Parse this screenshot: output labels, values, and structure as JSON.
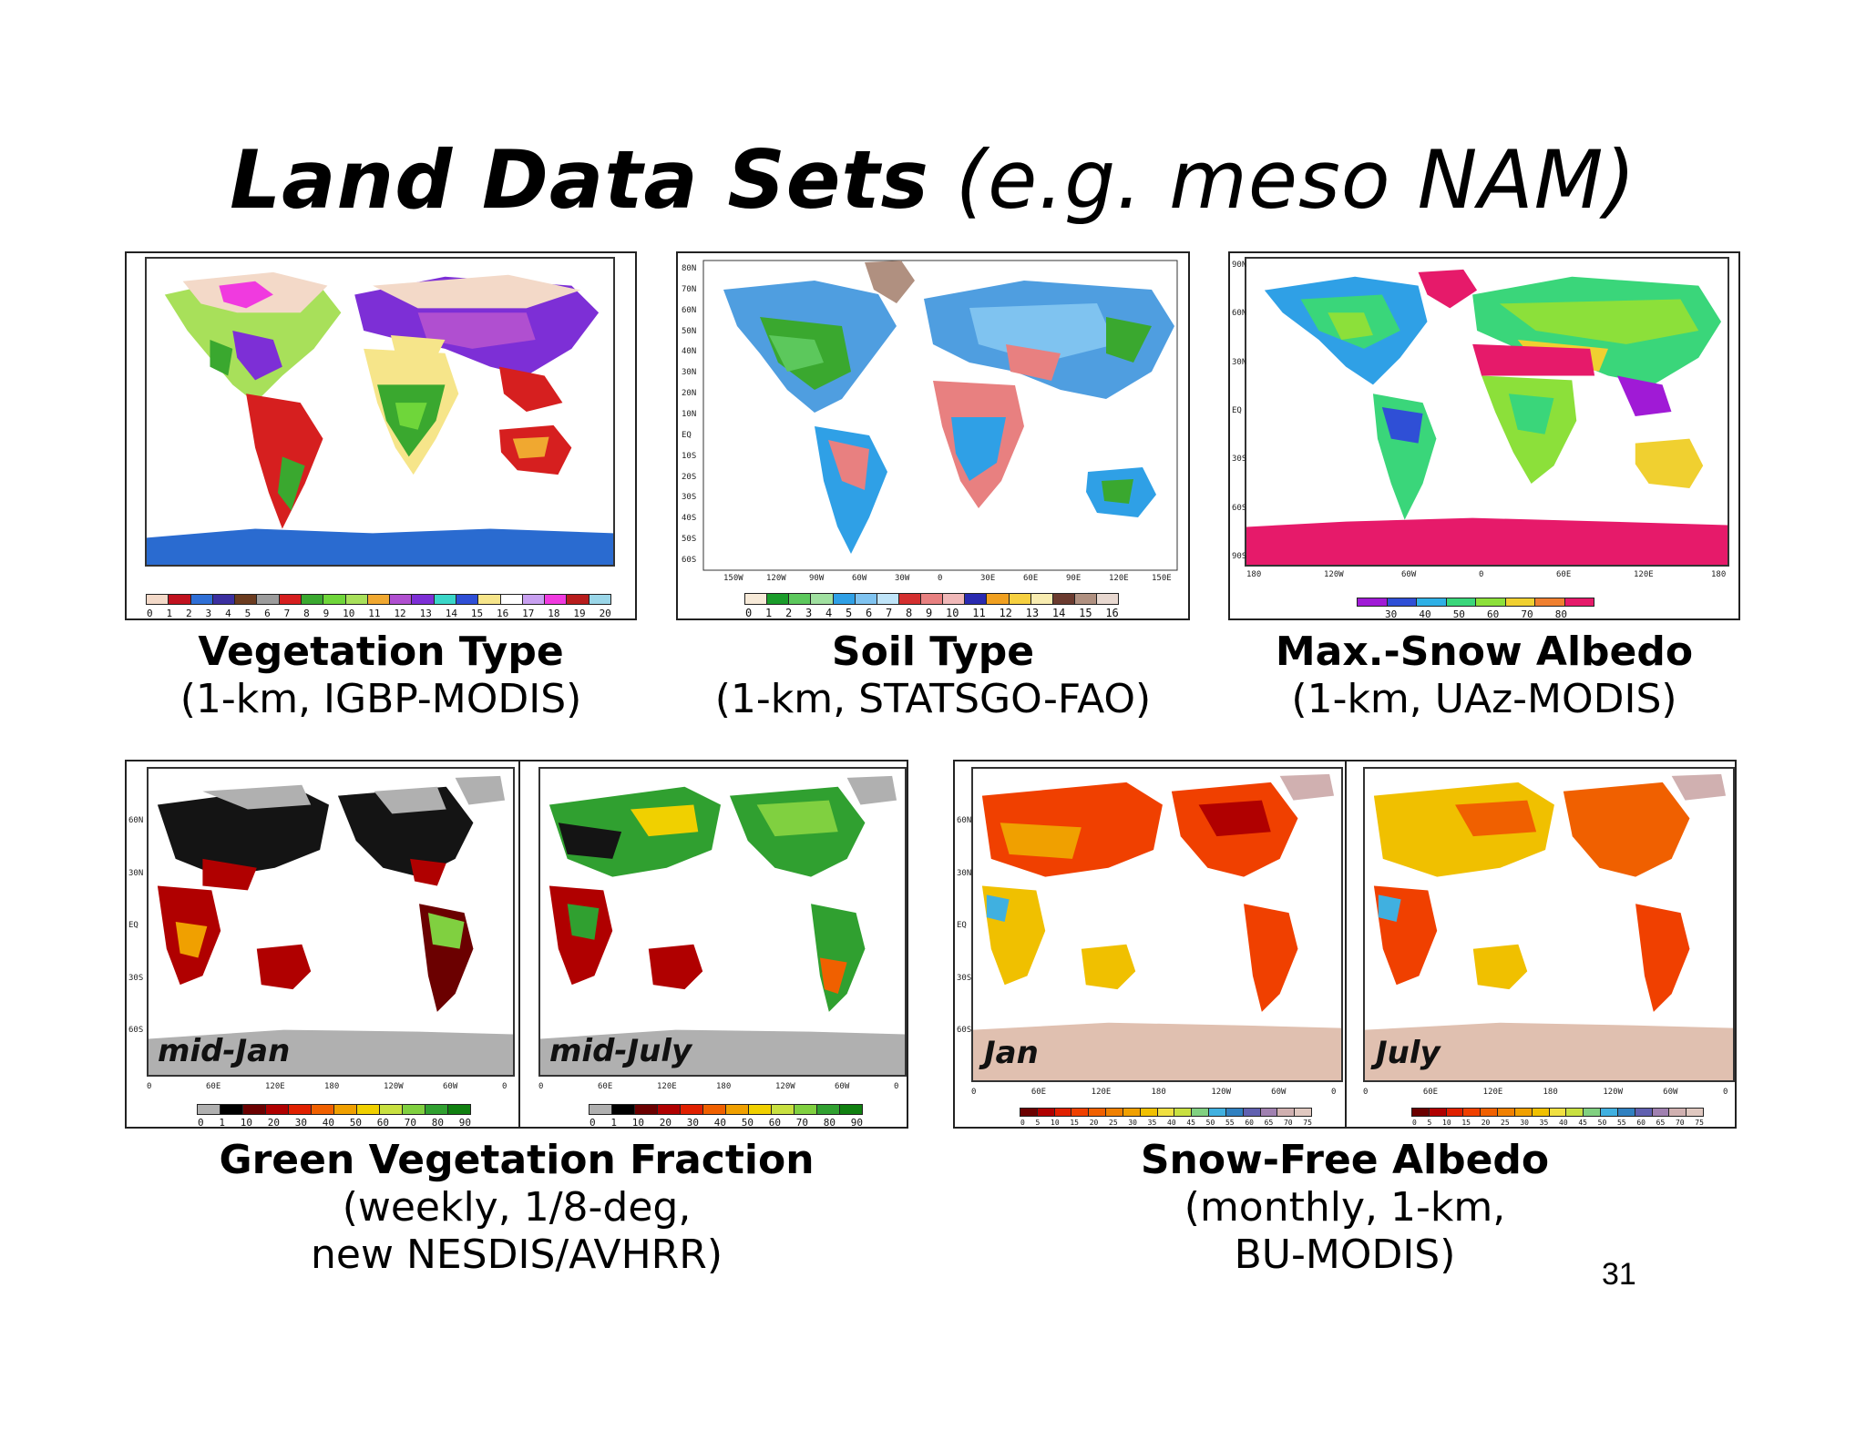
{
  "slide": {
    "title_bold": "Land Data Sets",
    "title_rest": "(e.g. meso NAM)",
    "page_number": "31"
  },
  "panels": {
    "vegetation": {
      "title": "Vegetation Type",
      "subtitle": "(1-km, IGBP-MODIS)",
      "colorbar_ticks": [
        "0",
        "1",
        "2",
        "3",
        "4",
        "5",
        "6",
        "7",
        "8",
        "9",
        "10",
        "11",
        "12",
        "13",
        "14",
        "15",
        "16",
        "17",
        "18",
        "19",
        "20"
      ],
      "colorbar_colors": [
        "#f3d9c8",
        "#c1121f",
        "#2f6fd6",
        "#3b2fa0",
        "#6b3b1f",
        "#9c9c9c",
        "#d61f1f",
        "#3aa82f",
        "#6fd63a",
        "#a8e05a",
        "#f0a830",
        "#b04fd0",
        "#7d2fd6",
        "#3ad6c8",
        "#2f4fd6",
        "#f6e58a",
        "#ffffff",
        "#c8a0f0",
        "#f03adf",
        "#b81d1d",
        "#9ad6e8"
      ]
    },
    "soil": {
      "title": "Soil Type",
      "subtitle": "(1-km, STATSGO-FAO)",
      "colorbar_ticks": [
        "0",
        "1",
        "2",
        "3",
        "4",
        "5",
        "6",
        "7",
        "8",
        "9",
        "10",
        "11",
        "12",
        "13",
        "14",
        "15",
        "16"
      ],
      "colorbar_colors": [
        "#f7ead8",
        "#1a9c2a",
        "#5cc85c",
        "#a0e0a0",
        "#2fa0e6",
        "#7fc3f0",
        "#bfe4f8",
        "#d42f2f",
        "#e88080",
        "#f0b8b8",
        "#2a2ab0",
        "#f0a020",
        "#f6d040",
        "#f8ecb0",
        "#6b3b2f",
        "#b09080",
        "#e8d8d0"
      ],
      "lat_labels": [
        "80N",
        "70N",
        "60N",
        "50N",
        "40N",
        "30N",
        "20N",
        "10N",
        "EQ",
        "10S",
        "20S",
        "30S",
        "40S",
        "50S",
        "60S"
      ],
      "lon_labels": [
        "150W",
        "120W",
        "90W",
        "60W",
        "30W",
        "0",
        "30E",
        "60E",
        "90E",
        "120E",
        "150E"
      ]
    },
    "snow_albedo": {
      "title": "Max.-Snow Albedo",
      "subtitle": "(1-km, UAz-MODIS)",
      "colorbar_ticks": [
        "30",
        "40",
        "50",
        "60",
        "70",
        "80"
      ],
      "colorbar_colors": [
        "#a01ad6",
        "#2f4fd6",
        "#2fb0e6",
        "#3ad67a",
        "#8ce03a",
        "#f0d030",
        "#f08030",
        "#e61a6a"
      ],
      "lat_labels": [
        "90N",
        "60N",
        "30N",
        "EQ",
        "30S",
        "60S",
        "90S"
      ],
      "lon_labels": [
        "180",
        "120W",
        "60W",
        "0",
        "60E",
        "120E",
        "180"
      ]
    },
    "gvf": {
      "title": "Green Vegetation Fraction",
      "subtitle_line1": "(weekly, 1/8-deg,",
      "subtitle_line2": "new NESDIS/AVHRR)",
      "left_label": "mid-Jan",
      "right_label": "mid-July",
      "colorbar_ticks": [
        "0",
        "1",
        "10",
        "20",
        "30",
        "40",
        "50",
        "60",
        "70",
        "80",
        "90"
      ],
      "colorbar_colors": [
        "#b0b0b0",
        "#000000",
        "#6b0000",
        "#b00000",
        "#e02000",
        "#f06000",
        "#f0a000",
        "#f0d000",
        "#c8e040",
        "#80d040",
        "#30a030",
        "#108010"
      ],
      "lat_labels": [
        "60N",
        "30N",
        "EQ",
        "30S",
        "60S"
      ],
      "lon_labels": [
        "0",
        "60E",
        "120E",
        "180",
        "120W",
        "60W",
        "0"
      ]
    },
    "sfa": {
      "title": "Snow-Free Albedo",
      "subtitle_line1": "(monthly, 1-km,",
      "subtitle_line2": "BU-MODIS)",
      "left_label": "Jan",
      "right_label": "July",
      "colorbar_ticks": [
        "0",
        "5",
        "10",
        "15",
        "20",
        "25",
        "30",
        "35",
        "40",
        "45",
        "50",
        "55",
        "60",
        "65",
        "70",
        "75"
      ],
      "colorbar_colors": [
        "#6b0000",
        "#b00000",
        "#e02000",
        "#f04000",
        "#f06000",
        "#f08000",
        "#f0a000",
        "#f0c000",
        "#f0e040",
        "#c8e040",
        "#80d080",
        "#40b0e0",
        "#3080c0",
        "#6060b0",
        "#a080b0",
        "#d0b0b0",
        "#e0c8c0"
      ],
      "lat_labels": [
        "60N",
        "30N",
        "EQ",
        "30S",
        "60S"
      ],
      "lon_labels": [
        "0",
        "60E",
        "120E",
        "180",
        "120W",
        "60W",
        "0"
      ]
    }
  }
}
